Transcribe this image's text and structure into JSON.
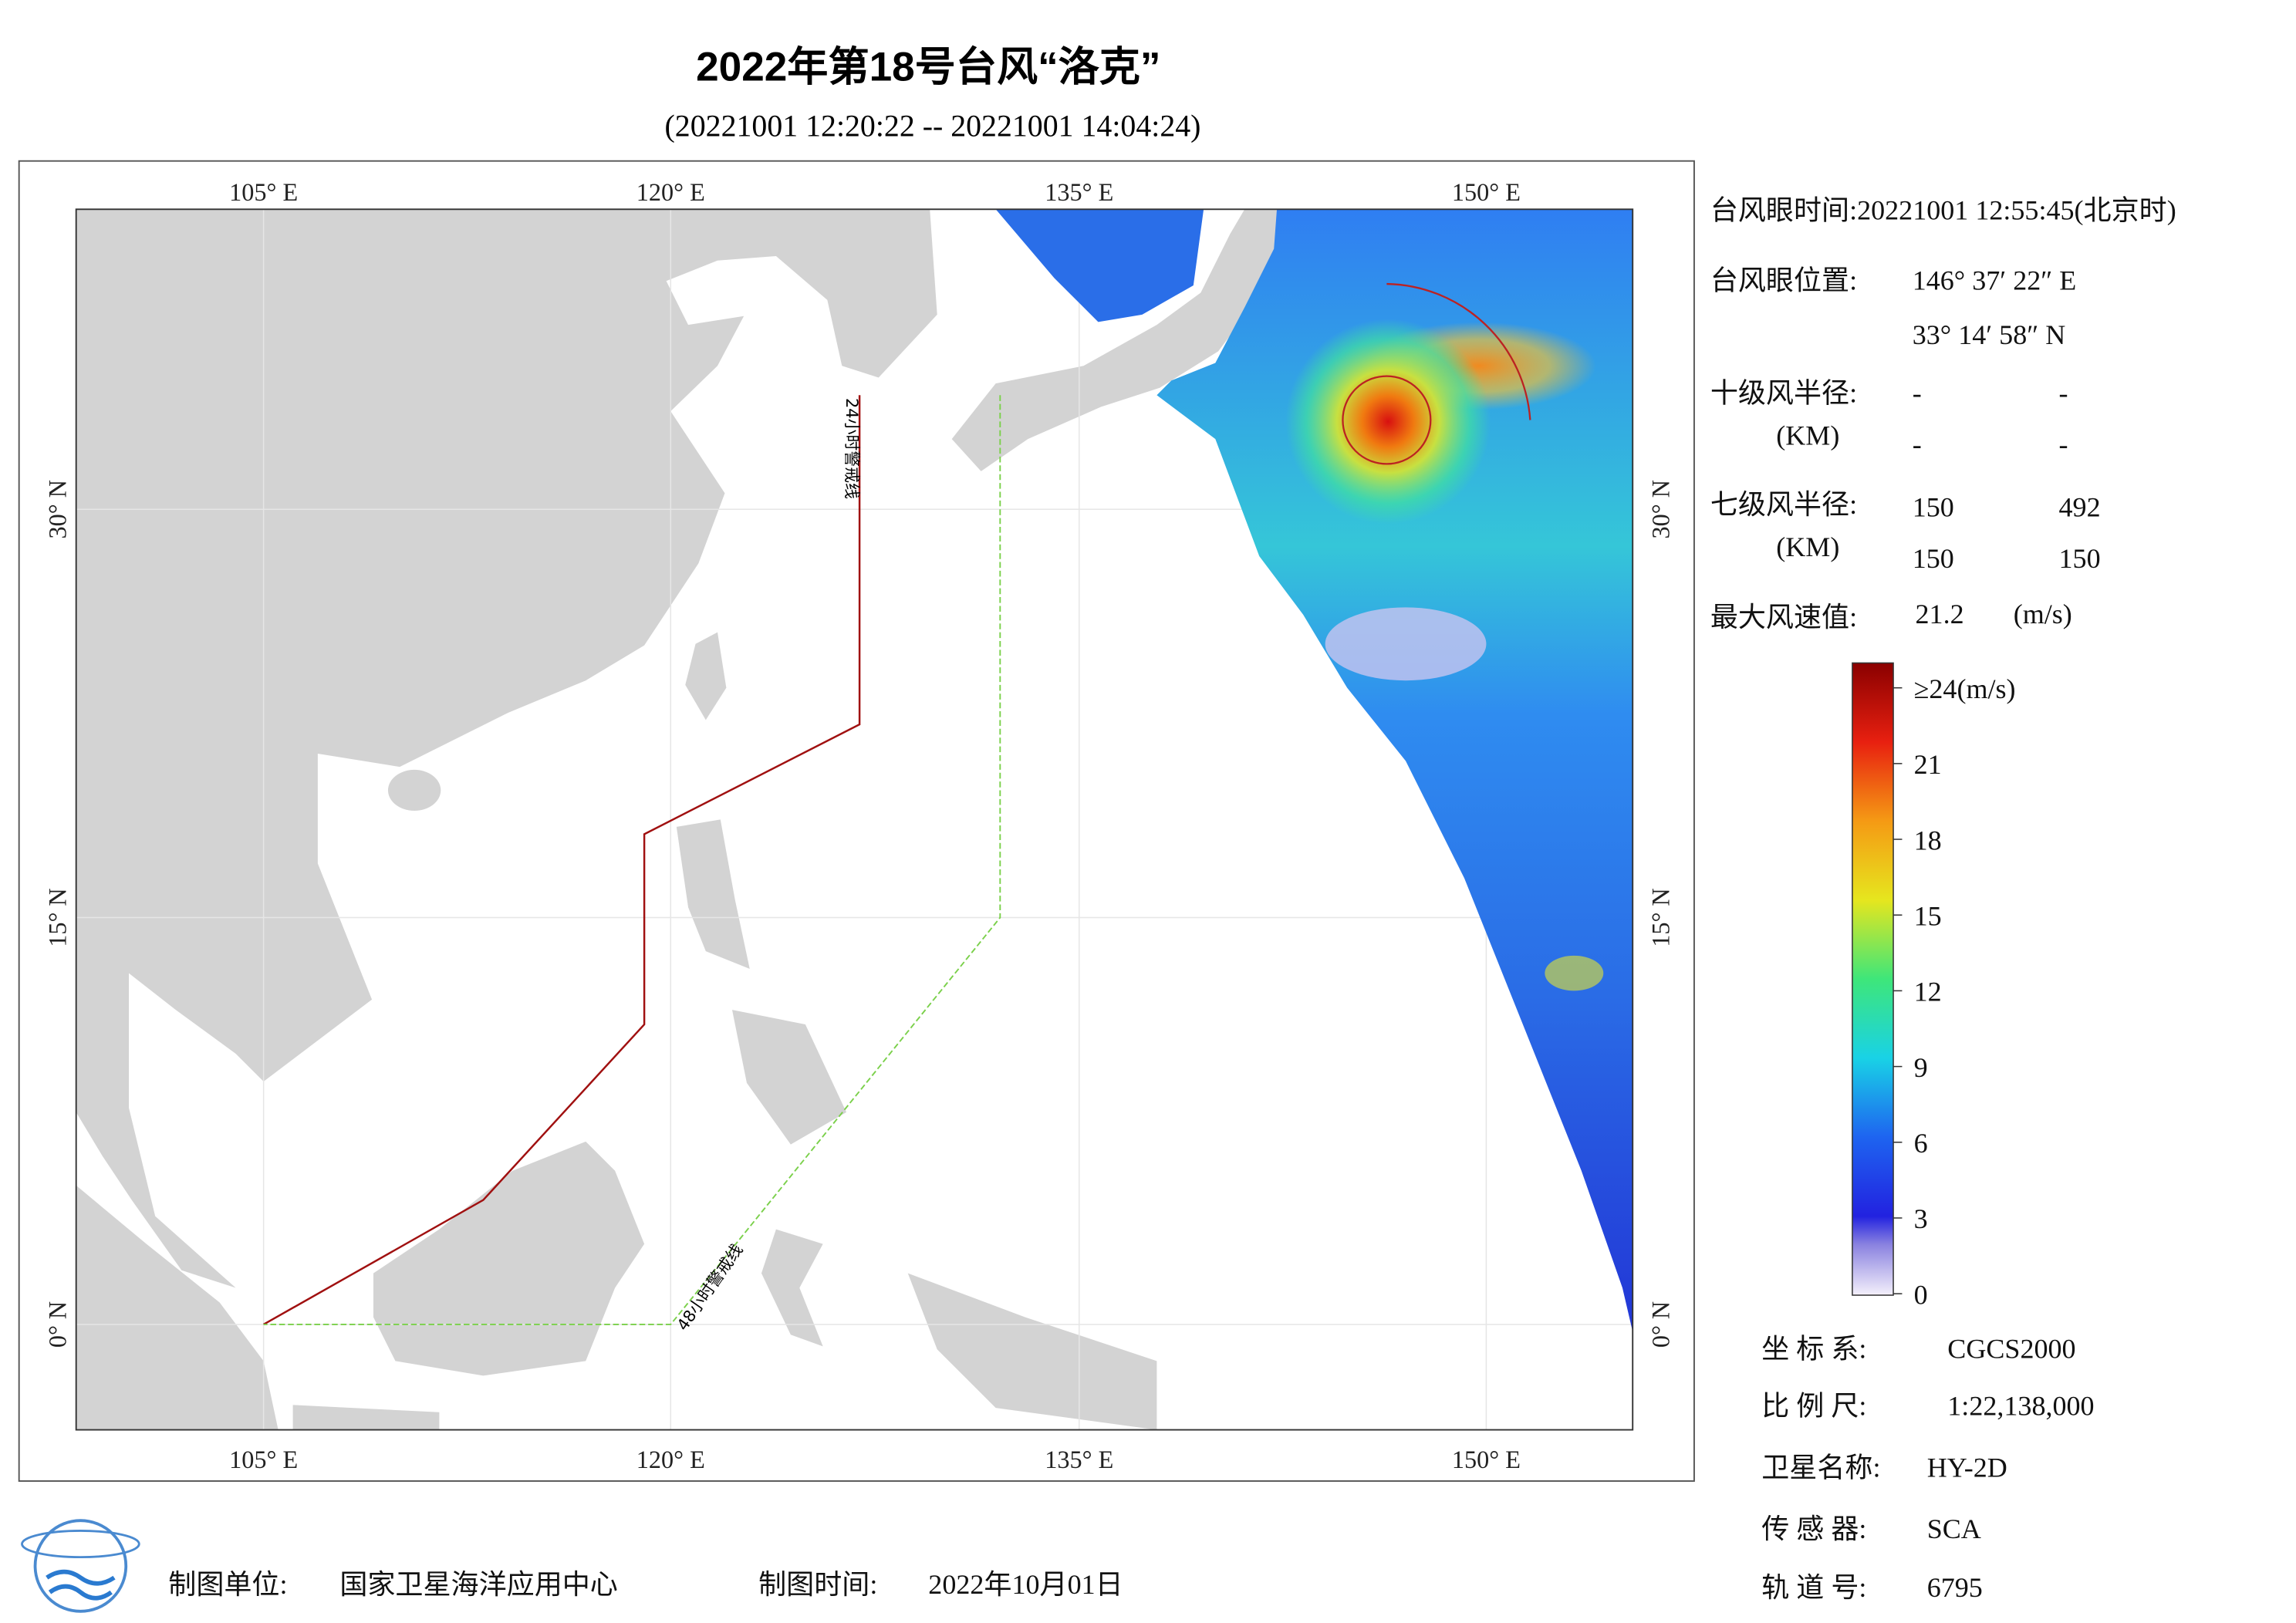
{
  "title": "2022年第18号台风“洛克”",
  "subtitle": "(20221001 12:20:22 -- 20221001 14:04:24)",
  "map": {
    "top_labels": [
      "105° E",
      "120° E",
      "135° E",
      "150° E"
    ],
    "bottom_labels": [
      "105° E",
      "120° E",
      "135° E",
      "150° E"
    ],
    "left_labels": [
      "30° N",
      "15° N",
      "0° N"
    ],
    "right_labels": [
      "30° N",
      "15° N",
      "0° N"
    ],
    "line_labels": [
      "24小时警戒线",
      "48小时警戒线"
    ]
  },
  "info": {
    "eye_time": "台风眼时间:20221001 12:55:45(北京时)",
    "eye_position_label": "台风眼位置:",
    "eye_lon": "146° 37′ 22″ E",
    "eye_lat": "33° 14′ 58″ N",
    "r10_label": "十级风半径:",
    "r10_unit": "(KM)",
    "r10_values": [
      "-",
      "-",
      "-",
      "-"
    ],
    "r7_label": "七级风半径:",
    "r7_unit": "(KM)",
    "r7_values": [
      "150",
      "492",
      "150",
      "150"
    ],
    "max_wind_label": "最大风速值:",
    "max_wind_value": "21.2",
    "max_wind_unit": "(m/s)"
  },
  "colorbar": {
    "lim": [
      0,
      24
    ],
    "ticks": [
      {
        "value": 24,
        "label": "≥24(m/s)"
      },
      21,
      18,
      15,
      12,
      9,
      6,
      3,
      0
    ]
  },
  "meta": [
    [
      "坐 标 系:",
      "CGCS2000"
    ],
    [
      "比 例 尺:",
      "1:22,138,000"
    ],
    [
      "卫星名称:",
      "HY-2D"
    ],
    [
      "传 感 器:",
      "SCA"
    ],
    [
      "轨 道 号:",
      "6795"
    ]
  ],
  "footer": {
    "unit_label": "制图单位:",
    "unit": "国家卫星海洋应用中心",
    "time_label": "制图时间:",
    "time": "2022年10月01日"
  }
}
